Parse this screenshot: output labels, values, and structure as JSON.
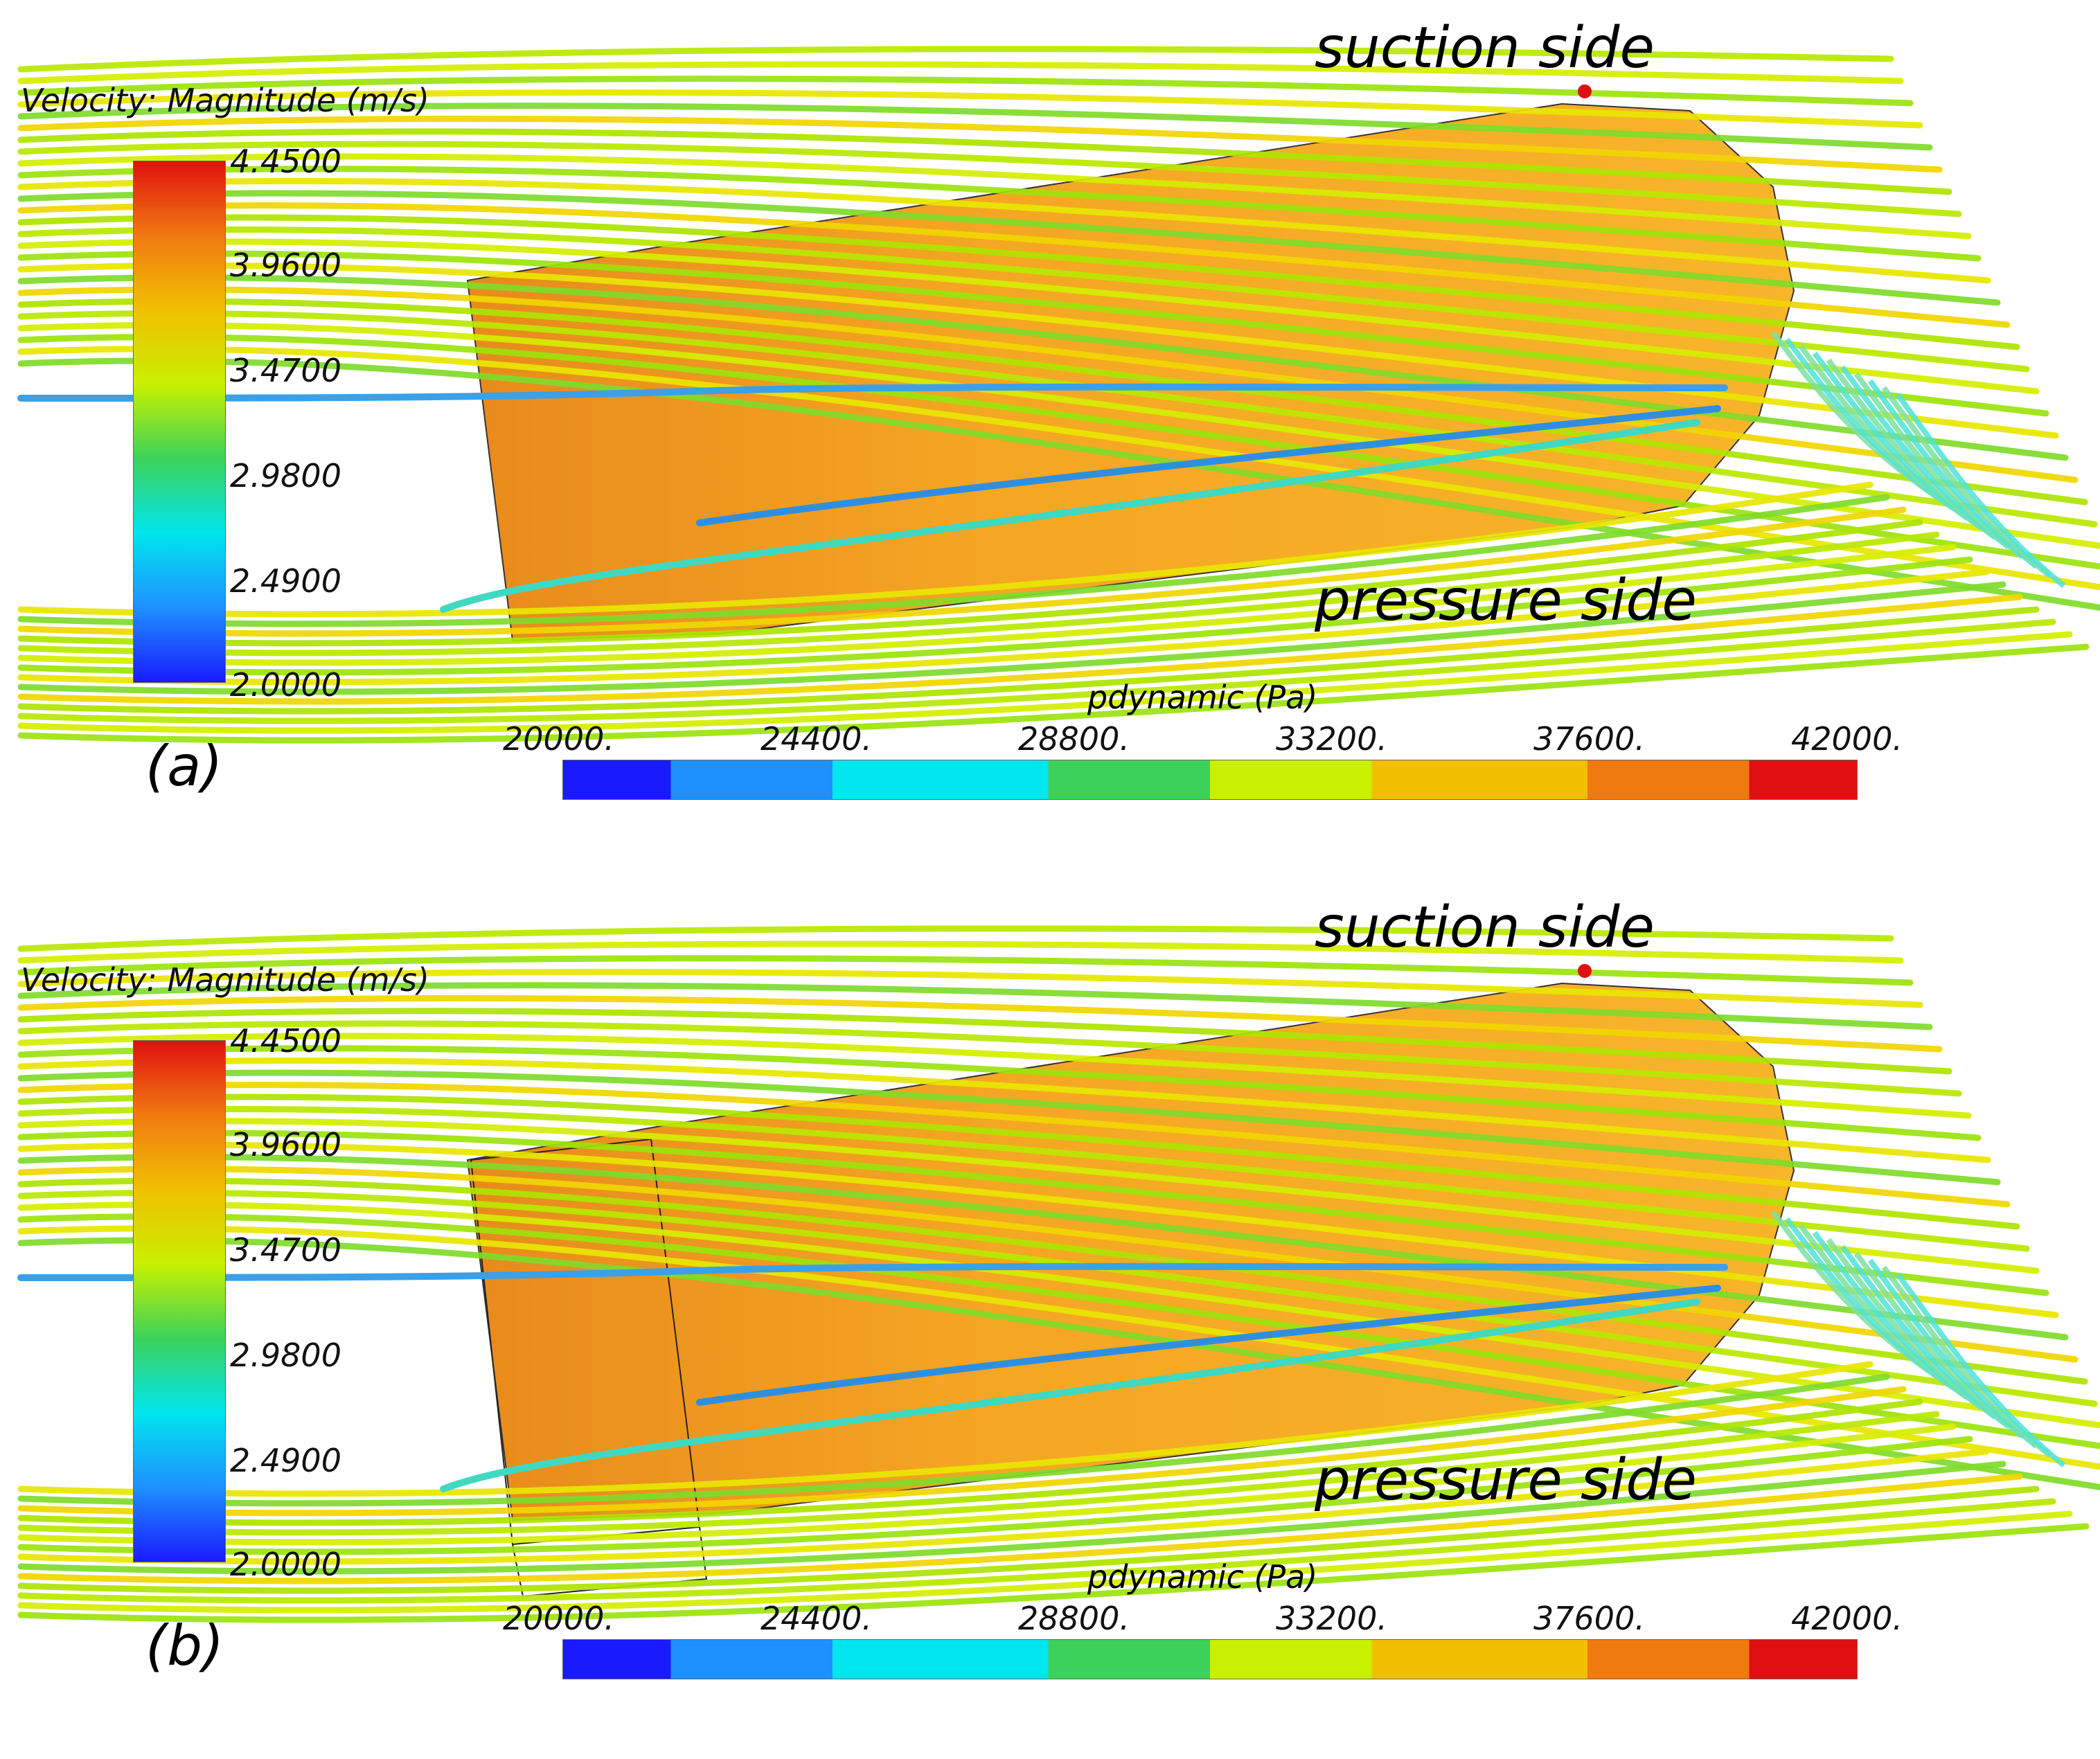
{
  "panels": [
    {
      "label": "(a)",
      "velocity_legend": {
        "title": "Velocity: Magnitude (m/s)",
        "ticks": [
          "4.4500",
          "3.9600",
          "3.4700",
          "2.9800",
          "2.4900",
          "2.0000"
        ]
      },
      "pressure_legend": {
        "title": "pdynamic (Pa)",
        "ticks": [
          "20000.",
          "24400.",
          "28800.",
          "33200.",
          "37600.",
          "42000."
        ]
      },
      "annotations": {
        "top": "suction side",
        "bottom": "pressure side"
      }
    },
    {
      "label": "(b)",
      "velocity_legend": {
        "title": "Velocity: Magnitude (m/s)",
        "ticks": [
          "4.4500",
          "3.9600",
          "3.4700",
          "2.9800",
          "2.4900",
          "2.0000"
        ]
      },
      "pressure_legend": {
        "title": "pdynamic (Pa)",
        "ticks": [
          "20000.",
          "24400.",
          "28800.",
          "33200.",
          "37600.",
          "42000."
        ]
      },
      "annotations": {
        "top": "suction side",
        "bottom": "pressure side"
      }
    }
  ],
  "colors": {
    "surface": "#f5a623",
    "colormap": [
      "#1a1aff",
      "#1e90ff",
      "#00e5ee",
      "#3cd25a",
      "#c8f000",
      "#f0c000",
      "#f07a10",
      "#e01010"
    ]
  }
}
